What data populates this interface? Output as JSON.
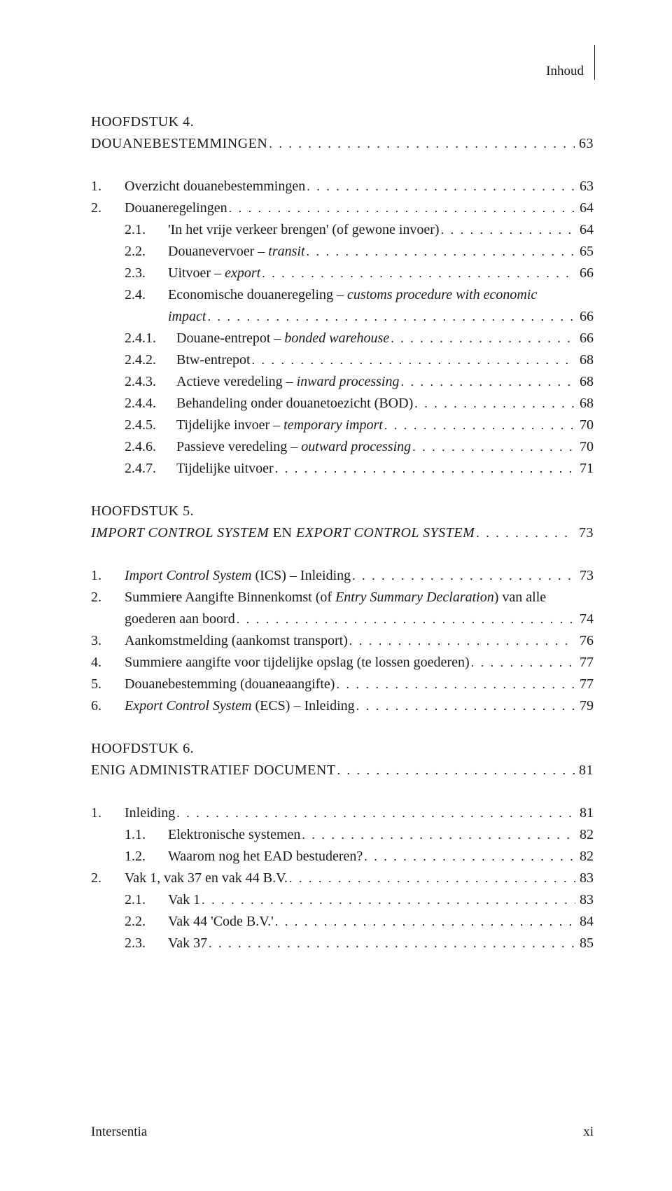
{
  "running_head": "Inhoud",
  "chapters": {
    "c4": {
      "num": "HOOFDSTUK 4.",
      "title": "DOUANEBESTEMMINGEN",
      "page": "63"
    },
    "c5": {
      "num": "HOOFDSTUK 5.",
      "title_a": "IMPORT CONTROL SYSTEM",
      "title_mid": " EN ",
      "title_b": "EXPORT CONTROL SYSTEM",
      "page": "73"
    },
    "c6": {
      "num": "HOOFDSTUK 6.",
      "title": "ENIG ADMINISTRATIEF DOCUMENT",
      "page": "81"
    }
  },
  "c4_entries": {
    "e1": {
      "num": "1.",
      "label": "Overzicht douanebestemmingen",
      "page": "63"
    },
    "e2": {
      "num": "2.",
      "label": "Douaneregelingen",
      "page": "64"
    },
    "e21": {
      "num": "2.1.",
      "label": "'In het vrije verkeer brengen' (of gewone invoer)",
      "page": "64"
    },
    "e22": {
      "num": "2.2.",
      "label_a": "Douanevervoer – ",
      "label_i": "transit",
      "page": "65"
    },
    "e23": {
      "num": "2.3.",
      "label_a": "Uitvoer – ",
      "label_i": "export",
      "page": "66"
    },
    "e24": {
      "num": "2.4.",
      "label_a": "Economische douaneregeling – ",
      "label_i": "customs procedure with economic",
      "label_i2": "impact",
      "page": "66"
    },
    "e241": {
      "num": "2.4.1.",
      "label_a": "Douane-entrepot – ",
      "label_i": "bonded warehouse",
      "page": "66"
    },
    "e242": {
      "num": "2.4.2.",
      "label": "Btw-entrepot",
      "page": "68"
    },
    "e243": {
      "num": "2.4.3.",
      "label_a": "Actieve veredeling – ",
      "label_i": "inward processing",
      "page": "68"
    },
    "e244": {
      "num": "2.4.4.",
      "label": "Behandeling onder douanetoezicht (BOD)",
      "page": "68"
    },
    "e245": {
      "num": "2.4.5.",
      "label_a": "Tijdelijke invoer – ",
      "label_i": "temporary import",
      "page": "70"
    },
    "e246": {
      "num": "2.4.6.",
      "label_a": "Passieve veredeling – ",
      "label_i": "outward processing",
      "page": "70"
    },
    "e247": {
      "num": "2.4.7.",
      "label": "Tijdelijke uitvoer",
      "page": "71"
    }
  },
  "c5_entries": {
    "e1": {
      "num": "1.",
      "label_i": "Import Control System",
      "label_a": " (ICS) – Inleiding",
      "page": "73"
    },
    "e2": {
      "num": "2.",
      "label_a": "Summiere Aangifte Binnenkomst (of ",
      "label_i": "Entry Summary Declaration",
      "label_b": ") van alle",
      "label_c": "goederen aan boord",
      "page": "74"
    },
    "e3": {
      "num": "3.",
      "label": "Aankomstmelding (aankomst transport)",
      "page": "76"
    },
    "e4": {
      "num": "4.",
      "label": "Summiere aangifte voor tijdelijke opslag (te lossen goederen)",
      "page": "77"
    },
    "e5": {
      "num": "5.",
      "label": "Douanebestemming (douaneaangifte)",
      "page": "77"
    },
    "e6": {
      "num": "6.",
      "label_i": "Export Control System",
      "label_a": " (ECS) – Inleiding",
      "page": "79"
    }
  },
  "c6_entries": {
    "e1": {
      "num": "1.",
      "label": "Inleiding",
      "page": "81"
    },
    "e11": {
      "num": "1.1.",
      "label": "Elektronische systemen",
      "page": "82"
    },
    "e12": {
      "num": "1.2.",
      "label": "Waarom nog het EAD bestuderen?",
      "page": "82"
    },
    "e2": {
      "num": "2.",
      "label": "Vak 1, vak 37 en vak 44 B.V.",
      "page": "83"
    },
    "e21": {
      "num": "2.1.",
      "label": "Vak 1",
      "page": "83"
    },
    "e22": {
      "num": "2.2.",
      "label": "Vak 44 'Code B.V.'",
      "page": "84"
    },
    "e23": {
      "num": "2.3.",
      "label": "Vak 37",
      "page": "85"
    }
  },
  "footer": {
    "publisher": "Intersentia",
    "page": "xi"
  }
}
